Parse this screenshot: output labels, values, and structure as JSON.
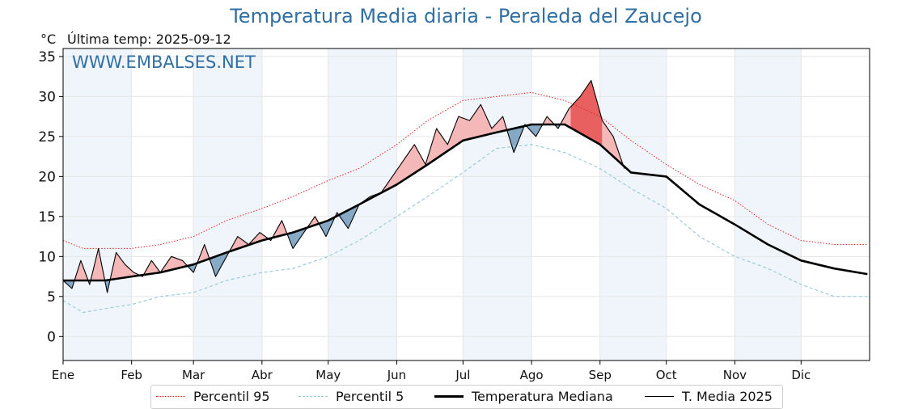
{
  "title": "Temperatura Media diaria - Peraleda del Zaucejo",
  "unit_label": "°C",
  "last_temp_label": "Última temp: 2025-09-12",
  "watermark": "WWW.EMBALSES.NET",
  "chart_data": {
    "type": "line",
    "x_unit": "day of year",
    "xlim": [
      1,
      366
    ],
    "ylim": [
      -3,
      36
    ],
    "yticks": [
      0,
      5,
      10,
      15,
      20,
      25,
      30,
      35
    ],
    "months": [
      {
        "label": "Ene",
        "start": 1,
        "end": 31
      },
      {
        "label": "Feb",
        "start": 32,
        "end": 59
      },
      {
        "label": "Mar",
        "start": 60,
        "end": 90
      },
      {
        "label": "Abr",
        "start": 91,
        "end": 120
      },
      {
        "label": "May",
        "start": 121,
        "end": 151
      },
      {
        "label": "Jun",
        "start": 152,
        "end": 181
      },
      {
        "label": "Jul",
        "start": 182,
        "end": 212
      },
      {
        "label": "Ago",
        "start": 213,
        "end": 243
      },
      {
        "label": "Sep",
        "start": 244,
        "end": 273
      },
      {
        "label": "Oct",
        "start": 274,
        "end": 304
      },
      {
        "label": "Nov",
        "start": 305,
        "end": 334
      },
      {
        "label": "Dic",
        "start": 335,
        "end": 365
      }
    ],
    "shaded_months": [
      "Ene",
      "Mar",
      "May",
      "Jul",
      "Sep",
      "Nov"
    ],
    "grid": true,
    "legend_position": "bottom-center",
    "colors": {
      "p95": "#e02020",
      "p5": "#9ccbd8",
      "median": "#000000",
      "current": "#000000",
      "above_fill": "#f4b8b8",
      "above_fill_strong": "#e86060",
      "below_fill": "#86a9c6",
      "month_band": "#f0f5fb"
    },
    "series": [
      {
        "name": "Percentil 95",
        "style": "dotted",
        "x": [
          1,
          10,
          20,
          32,
          45,
          60,
          75,
          91,
          105,
          121,
          135,
          152,
          166,
          182,
          197,
          213,
          228,
          244,
          258,
          274,
          289,
          305,
          320,
          335,
          350,
          365
        ],
        "y": [
          12,
          11,
          11,
          11,
          11.5,
          12.5,
          14.5,
          16,
          17.5,
          19.5,
          21,
          24,
          27,
          29.5,
          30,
          30.5,
          29.5,
          27.5,
          24.5,
          21.5,
          19,
          17,
          14,
          12,
          11.5,
          11.5
        ]
      },
      {
        "name": "Percentil 5",
        "style": "dashed",
        "x": [
          1,
          10,
          20,
          32,
          45,
          60,
          75,
          91,
          105,
          121,
          135,
          152,
          166,
          182,
          197,
          213,
          228,
          244,
          258,
          274,
          289,
          305,
          320,
          335,
          350,
          365
        ],
        "y": [
          4.5,
          3,
          3.5,
          4,
          5,
          5.5,
          7,
          8,
          8.5,
          10,
          12,
          15,
          17.5,
          20.5,
          23.5,
          24,
          23,
          21,
          18.5,
          16,
          12.5,
          10,
          8.5,
          6.5,
          5,
          5
        ]
      },
      {
        "name": "Temperatura Mediana",
        "style": "solid-thick",
        "x": [
          1,
          10,
          20,
          32,
          45,
          60,
          75,
          91,
          105,
          121,
          135,
          152,
          166,
          182,
          197,
          213,
          228,
          244,
          258,
          274,
          289,
          305,
          320,
          335,
          350,
          365
        ],
        "y": [
          7,
          7,
          7,
          7.5,
          8,
          9,
          10.5,
          12,
          13,
          14.5,
          16.5,
          19,
          21.5,
          24.5,
          25.5,
          26.5,
          26.5,
          24,
          20.5,
          20,
          16.5,
          14,
          11.5,
          9.5,
          8.5,
          7.8
        ]
      },
      {
        "name": "T. Media 2025",
        "style": "solid-thin",
        "x": [
          1,
          5,
          9,
          13,
          17,
          21,
          25,
          29,
          33,
          37,
          41,
          45,
          50,
          55,
          60,
          65,
          70,
          75,
          80,
          85,
          90,
          95,
          100,
          105,
          110,
          115,
          120,
          125,
          130,
          135,
          140,
          145,
          150,
          155,
          160,
          165,
          170,
          175,
          180,
          185,
          190,
          195,
          200,
          205,
          210,
          215,
          220,
          225,
          230,
          235,
          240,
          245,
          250,
          255
        ],
        "y": [
          7,
          6,
          9.5,
          6.5,
          11,
          5.5,
          10.5,
          9,
          8,
          7.5,
          9.5,
          8,
          10,
          9.5,
          8,
          11.5,
          7.5,
          10,
          12.5,
          11.5,
          13,
          12,
          14.5,
          11,
          13,
          15,
          12.5,
          15.5,
          13.5,
          16.5,
          17.5,
          18,
          20,
          22,
          24,
          21.5,
          26,
          24,
          27.5,
          27,
          29,
          26,
          27.5,
          23,
          26.5,
          25,
          27.5,
          26,
          28.5,
          30,
          32,
          27,
          25,
          21
        ]
      }
    ]
  },
  "legend": {
    "p95_label": "Percentil 95",
    "p5_label": "Percentil 5",
    "median_label": "Temperatura Mediana",
    "current_label": "T. Media 2025"
  }
}
